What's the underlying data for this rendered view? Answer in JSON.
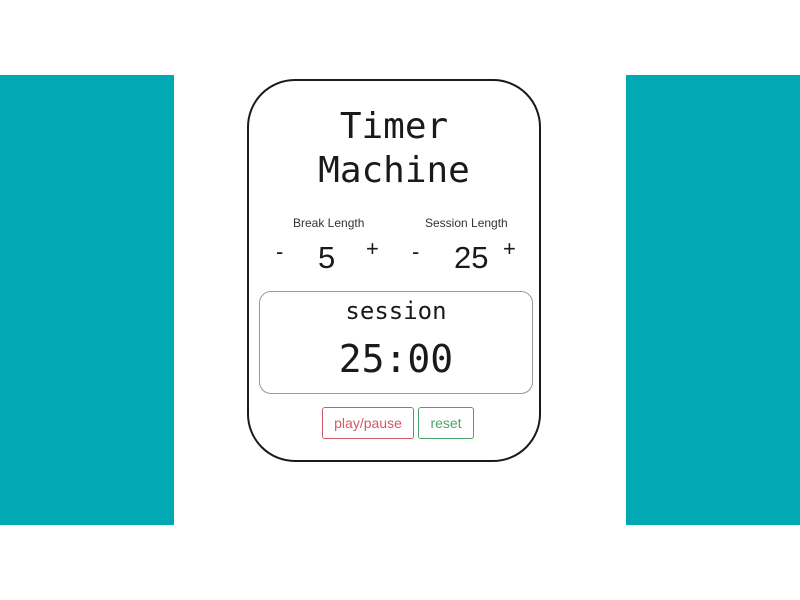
{
  "colors": {
    "accent": "#00a9b3",
    "play_button": "#d05a66",
    "reset_button": "#4aa368"
  },
  "app": {
    "title_line1": "Timer",
    "title_line2": "Machine"
  },
  "break": {
    "label": "Break Length",
    "decrement": "-",
    "value": "5",
    "increment": "+"
  },
  "session": {
    "label": "Session Length",
    "decrement": "-",
    "value": "25",
    "increment": "+"
  },
  "display": {
    "mode": "session",
    "time": "25:00"
  },
  "controls": {
    "play_pause_label": "play/pause",
    "reset_label": "reset"
  }
}
